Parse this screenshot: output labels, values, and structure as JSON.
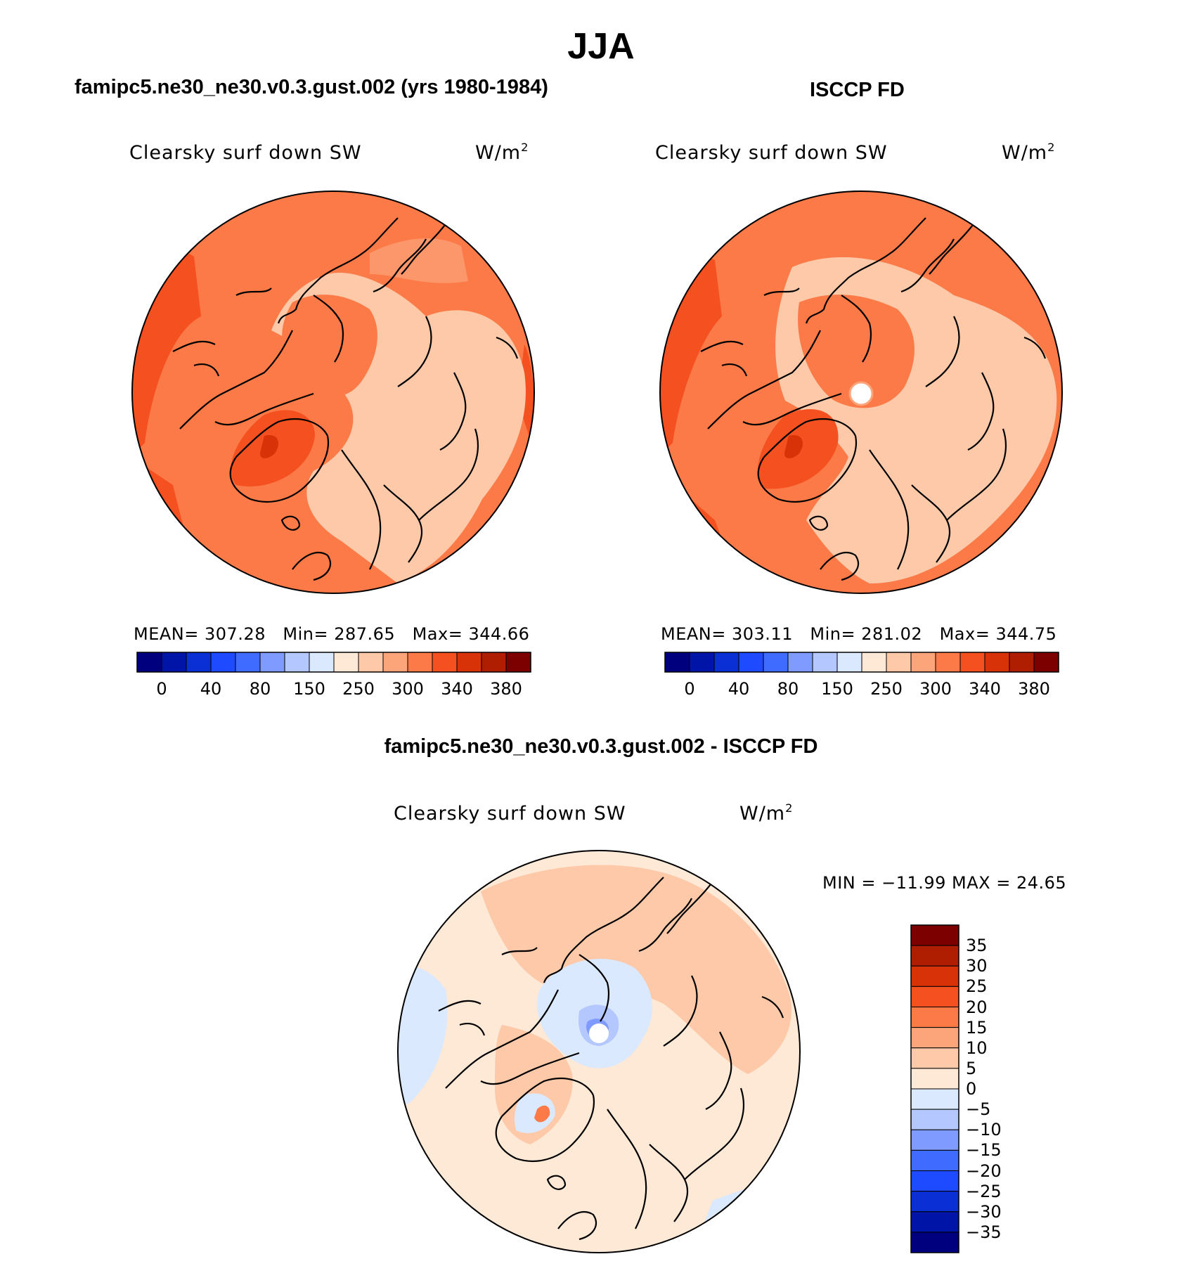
{
  "figure": {
    "title": "JJA",
    "diff_title": "famipc5.ne30_ne30.v0.3.gust.002 - ISCCP FD"
  },
  "panels": [
    {
      "id": "model",
      "title": "famipc5.ne30_ne30.v0.3.gust.002 (yrs 1980-1984)",
      "variable": "Clearsky surf down SW",
      "units": "W/m",
      "units_sup": "2",
      "mean_label": "MEAN=",
      "mean": "307.28",
      "min_label": "Min=",
      "min": "287.65",
      "max_label": "Max=",
      "max": "344.66",
      "has_pole_hole": false
    },
    {
      "id": "obs",
      "title": "ISCCP FD",
      "variable": "Clearsky surf down SW",
      "units": "W/m",
      "units_sup": "2",
      "mean_label": "MEAN=",
      "mean": "303.11",
      "min_label": "Min=",
      "min": "281.02",
      "max_label": "Max=",
      "max": "344.75",
      "has_pole_hole": true
    }
  ],
  "abs_colorbar": {
    "colors": [
      "#00007f",
      "#0015a8",
      "#0a2fd4",
      "#1e4bff",
      "#3f6cff",
      "#7f9bff",
      "#b4c8ff",
      "#dbe9ff",
      "#fee8d6",
      "#fdc9a8",
      "#fca47a",
      "#fb7a47",
      "#f5501f",
      "#d83208",
      "#b01e02",
      "#7d0000"
    ],
    "tick_labels": [
      "0",
      "40",
      "80",
      "150",
      "250",
      "300",
      "340",
      "380"
    ]
  },
  "diff_panel": {
    "variable": "Clearsky surf down SW",
    "units": "W/m",
    "units_sup": "2",
    "minmax_text": "MIN = −11.99 MAX =  24.65"
  },
  "diff_colorbar": {
    "colors_top_to_bottom": [
      "#7d0000",
      "#b01e02",
      "#d83208",
      "#f5501f",
      "#fb7a47",
      "#fca47a",
      "#fdc9a8",
      "#fee8d6",
      "#dbe9ff",
      "#b4c8ff",
      "#7f9bff",
      "#3f6cff",
      "#1e4bff",
      "#0a2fd4",
      "#0015a8",
      "#00007f"
    ],
    "tick_labels": [
      "35",
      "30",
      "25",
      "20",
      "15",
      "10",
      "5",
      "0",
      "−5",
      "−10",
      "−15",
      "−20",
      "−25",
      "−30",
      "−35"
    ]
  },
  "map_colors": {
    "base_model": "#fb7a47",
    "base_obs": "#fb7a47",
    "light": "#fca47a",
    "lighter": "#fdc9a8",
    "dark": "#f5501f",
    "darker": "#d83208",
    "diff_base": "#fee8d6",
    "diff_pos": "#fdc9a8",
    "diff_pos2": "#fca47a",
    "diff_neg": "#dbe9ff",
    "diff_neg2": "#b4c8ff",
    "diff_neg3": "#7f9bff",
    "coast": "#000000"
  }
}
